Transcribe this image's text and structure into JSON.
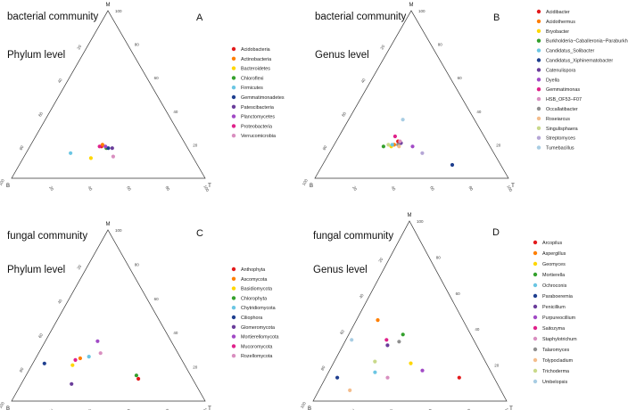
{
  "chart_data": [
    {
      "type": "scatter",
      "subtype": "ternary",
      "panel": "A",
      "title": "bacterial community",
      "subtitle": "Phylum level",
      "vertices": {
        "top": "M",
        "left": "B",
        "right": "T"
      },
      "ticks": [
        20,
        40,
        60,
        80,
        100
      ],
      "legend": [
        {
          "name": "Acidobacteria",
          "color": "#e31a1c"
        },
        {
          "name": "Actinobacteria",
          "color": "#ff7f00"
        },
        {
          "name": "Bacteroidetes",
          "color": "#ffd700"
        },
        {
          "name": "Chloroflexi",
          "color": "#33a02c"
        },
        {
          "name": "Firmicutes",
          "color": "#6bc6e3"
        },
        {
          "name": "Gemmatimonadetes",
          "color": "#1f3f8f"
        },
        {
          "name": "Patescibacteria",
          "color": "#6a3d9a"
        },
        {
          "name": "Planctomycetes",
          "color": "#a14ac6"
        },
        {
          "name": "Proteobacteria",
          "color": "#e0218a"
        },
        {
          "name": "Verrucomicrobia",
          "color": "#d98fc0"
        }
      ],
      "points": [
        {
          "series": "Acidobacteria",
          "M": 19,
          "B": 44,
          "T": 37
        },
        {
          "series": "Actinobacteria",
          "M": 20,
          "B": 43,
          "T": 37
        },
        {
          "series": "Bacteroidetes",
          "M": 12,
          "B": 53,
          "T": 35
        },
        {
          "series": "Chloroflexi",
          "M": 18,
          "B": 42,
          "T": 40
        },
        {
          "series": "Firmicutes",
          "M": 15,
          "B": 62,
          "T": 23
        },
        {
          "series": "Gemmatimonadetes",
          "M": 18,
          "B": 41,
          "T": 41
        },
        {
          "series": "Patescibacteria",
          "M": 18,
          "B": 39,
          "T": 43
        },
        {
          "series": "Planctomycetes",
          "M": 19,
          "B": 42,
          "T": 39
        },
        {
          "series": "Proteobacteria",
          "M": 19,
          "B": 45,
          "T": 36
        },
        {
          "series": "Verrucomicrobia",
          "M": 13,
          "B": 41,
          "T": 46
        }
      ]
    },
    {
      "type": "scatter",
      "subtype": "ternary",
      "panel": "B",
      "title": "bacterial community",
      "subtitle": "Genus level",
      "vertices": {
        "top": "M",
        "left": "B",
        "right": "T"
      },
      "ticks": [
        20,
        40,
        60,
        80,
        100
      ],
      "legend": [
        {
          "name": "Acidibacter",
          "color": "#e31a1c"
        },
        {
          "name": "Acidothermus",
          "color": "#ff7f00"
        },
        {
          "name": "Bryobacter",
          "color": "#ffd700"
        },
        {
          "name": "Burkholderia−Caballeronia−Paraburkholderia",
          "color": "#33a02c"
        },
        {
          "name": "Candidatus_Solibacter",
          "color": "#6bc6e3"
        },
        {
          "name": "Candidatus_Xiphinematobacter",
          "color": "#1f3f8f"
        },
        {
          "name": "Catenulispora",
          "color": "#6a3d9a"
        },
        {
          "name": "Dyella",
          "color": "#a14ac6"
        },
        {
          "name": "Gemmatimonas",
          "color": "#e0218a"
        },
        {
          "name": "HSB_OF53−F07",
          "color": "#d98fc0"
        },
        {
          "name": "Occallatibacter",
          "color": "#8f8f8f"
        },
        {
          "name": "Roseiarcus",
          "color": "#f4bd8c"
        },
        {
          "name": "Singulisphaera",
          "color": "#c9d98a"
        },
        {
          "name": "Streptomyces",
          "color": "#b5a6d6"
        },
        {
          "name": "Tumebacillus",
          "color": "#a8cde3"
        }
      ],
      "points": [
        {
          "series": "Acidibacter",
          "M": 22,
          "B": 46,
          "T": 32
        },
        {
          "series": "Acidothermus",
          "M": 20,
          "B": 49,
          "T": 31
        },
        {
          "series": "Bryobacter",
          "M": 19,
          "B": 51,
          "T": 30
        },
        {
          "series": "Burkholderia−Caballeronia−Paraburkholderia",
          "M": 19,
          "B": 55,
          "T": 26
        },
        {
          "series": "Candidatus_Solibacter",
          "M": 20,
          "B": 50,
          "T": 30
        },
        {
          "series": "Candidatus_Xiphinematobacter",
          "M": 8,
          "B": 25,
          "T": 67
        },
        {
          "series": "Catenulispora",
          "M": 21,
          "B": 45,
          "T": 34
        },
        {
          "series": "Dyella",
          "M": 19,
          "B": 40,
          "T": 41
        },
        {
          "series": "Gemmatimonas",
          "M": 25,
          "B": 46,
          "T": 29
        },
        {
          "series": "HSB_OF53−F07",
          "M": 22,
          "B": 45,
          "T": 33
        },
        {
          "series": "Occallatibacter",
          "M": 20,
          "B": 47,
          "T": 33
        },
        {
          "series": "Roseiarcus",
          "M": 19,
          "B": 47,
          "T": 34
        },
        {
          "series": "Singulisphaera",
          "M": 20,
          "B": 52,
          "T": 28
        },
        {
          "series": "Streptomyces",
          "M": 15,
          "B": 37,
          "T": 48
        },
        {
          "series": "Tumebacillus",
          "M": 35,
          "B": 37,
          "T": 28
        }
      ]
    },
    {
      "type": "scatter",
      "subtype": "ternary",
      "panel": "C",
      "title": "fungal community",
      "subtitle": "Phylum level",
      "vertices": {
        "top": "M",
        "left": "B",
        "right": "T"
      },
      "ticks": [
        20,
        40,
        60,
        80,
        100
      ],
      "legend": [
        {
          "name": "Anthophyta",
          "color": "#e31a1c"
        },
        {
          "name": "Ascomycota",
          "color": "#ff7f00"
        },
        {
          "name": "Basidiomycota",
          "color": "#ffd700"
        },
        {
          "name": "Chlorophyta",
          "color": "#33a02c"
        },
        {
          "name": "Chytridiomycota",
          "color": "#6bc6e3"
        },
        {
          "name": "Ciliophora",
          "color": "#1f3f8f"
        },
        {
          "name": "Glomeromycota",
          "color": "#6a3d9a"
        },
        {
          "name": "Mortierellomycota",
          "color": "#a14ac6"
        },
        {
          "name": "Mucoromycota",
          "color": "#e0218a"
        },
        {
          "name": "Rozellomycota",
          "color": "#d98fc0"
        }
      ],
      "points": [
        {
          "series": "Anthophyta",
          "M": 13,
          "B": 28,
          "T": 59
        },
        {
          "series": "Ascomycota",
          "M": 25,
          "B": 52,
          "T": 23
        },
        {
          "series": "Basidiomycota",
          "M": 21,
          "B": 58,
          "T": 21
        },
        {
          "series": "Chlorophyta",
          "M": 15,
          "B": 28,
          "T": 57
        },
        {
          "series": "Chytridiomycota",
          "M": 26,
          "B": 47,
          "T": 27
        },
        {
          "series": "Ciliophora",
          "M": 22,
          "B": 72,
          "T": 6
        },
        {
          "series": "Glomeromycota",
          "M": 10,
          "B": 64,
          "T": 26
        },
        {
          "series": "Mortierellomycota",
          "M": 35,
          "B": 38,
          "T": 27
        },
        {
          "series": "Mucoromycota",
          "M": 24,
          "B": 55,
          "T": 21
        },
        {
          "series": "Rozellomycota",
          "M": 28,
          "B": 40,
          "T": 32
        }
      ]
    },
    {
      "type": "scatter",
      "subtype": "ternary",
      "panel": "D",
      "title": "fungal community",
      "subtitle": "Genus level",
      "vertices": {
        "top": "M",
        "left": "B",
        "right": "T"
      },
      "ticks": [
        20,
        40,
        60,
        80,
        100
      ],
      "legend": [
        {
          "name": "Arcopilus",
          "color": "#e31a1c"
        },
        {
          "name": "Aspergillus",
          "color": "#ff7f00"
        },
        {
          "name": "Geomyces",
          "color": "#ffd700"
        },
        {
          "name": "Mortierella",
          "color": "#33a02c"
        },
        {
          "name": "Ochroconis",
          "color": "#6bc6e3"
        },
        {
          "name": "Paraboeremia",
          "color": "#1f3f8f"
        },
        {
          "name": "Penicillium",
          "color": "#6a3d9a"
        },
        {
          "name": "Purpureocillium",
          "color": "#a14ac6"
        },
        {
          "name": "Saitozyma",
          "color": "#e0218a"
        },
        {
          "name": "Staphylotrichum",
          "color": "#d98fc0"
        },
        {
          "name": "Talaromyces",
          "color": "#8f8f8f"
        },
        {
          "name": "Tolypocladium",
          "color": "#f4bd8c"
        },
        {
          "name": "Trichoderma",
          "color": "#c9d98a"
        },
        {
          "name": "Umbelopsis",
          "color": "#a8cde3"
        }
      ],
      "points": [
        {
          "series": "Arcopilus",
          "M": 13,
          "B": 18,
          "T": 69
        },
        {
          "series": "Aspergillus",
          "M": 45,
          "B": 44,
          "T": 11
        },
        {
          "series": "Geomyces",
          "M": 21,
          "B": 39,
          "T": 40
        },
        {
          "series": "Mortierella",
          "M": 37,
          "B": 35,
          "T": 28
        },
        {
          "series": "Ochroconis",
          "M": 16,
          "B": 60,
          "T": 24
        },
        {
          "series": "Paraboeremia",
          "M": 13,
          "B": 81,
          "T": 6
        },
        {
          "series": "Penicillium",
          "M": 31,
          "B": 46,
          "T": 23
        },
        {
          "series": "Purpureocillium",
          "M": 17,
          "B": 35,
          "T": 48
        },
        {
          "series": "Saitozyma",
          "M": 34,
          "B": 45,
          "T": 21
        },
        {
          "series": "Staphylotrichum",
          "M": 13,
          "B": 55,
          "T": 32
        },
        {
          "series": "Talaromyces",
          "M": 33,
          "B": 39,
          "T": 28
        },
        {
          "series": "Tolypocladium",
          "M": 6,
          "B": 78,
          "T": 16
        },
        {
          "series": "Trichoderma",
          "M": 22,
          "B": 57,
          "T": 21
        },
        {
          "series": "Umbelopsis",
          "M": 34,
          "B": 63,
          "T": 3
        }
      ]
    }
  ]
}
